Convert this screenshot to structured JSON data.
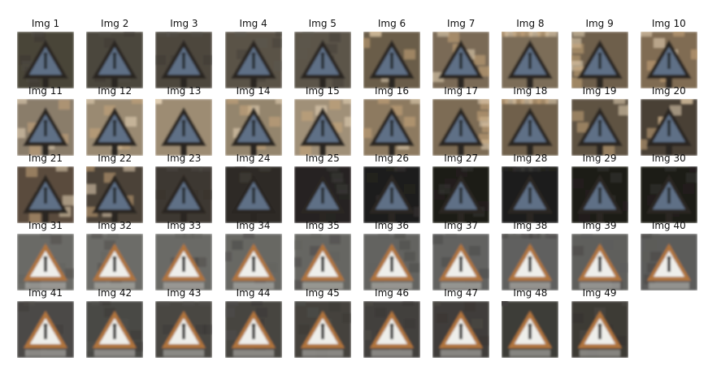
{
  "figure": {
    "images": [
      {
        "label": "Img 1",
        "style": "dark-blue-sign",
        "background": "#4a4438"
      },
      {
        "label": "Img 2",
        "style": "dark-blue-sign",
        "background": "#4b463c"
      },
      {
        "label": "Img 3",
        "style": "dark-blue-sign",
        "background": "#4d473d"
      },
      {
        "label": "Img 4",
        "style": "dark-blue-sign",
        "background": "#5a5347"
      },
      {
        "label": "Img 5",
        "style": "dark-blue-sign",
        "background": "#5b5549"
      },
      {
        "label": "Img 6",
        "style": "dark-blue-sign",
        "background": "#6b5d4a"
      },
      {
        "label": "Img 7",
        "style": "dark-blue-sign",
        "background": "#7a6b56"
      },
      {
        "label": "Img 8",
        "style": "dark-blue-sign",
        "background": "#7c6d58"
      },
      {
        "label": "Img 9",
        "style": "dark-blue-sign",
        "background": "#6e5f4b"
      },
      {
        "label": "Img 10",
        "style": "dark-blue-sign",
        "background": "#806c52"
      },
      {
        "label": "Img 11",
        "style": "dark-blue-sign",
        "background": "#8a7d6a"
      },
      {
        "label": "Img 12",
        "style": "dark-blue-sign",
        "background": "#9a8a72"
      },
      {
        "label": "Img 13",
        "style": "dark-blue-sign",
        "background": "#9d8c73"
      },
      {
        "label": "Img 14",
        "style": "dark-blue-sign",
        "background": "#94856d"
      },
      {
        "label": "Img 15",
        "style": "dark-blue-sign",
        "background": "#a09078"
      },
      {
        "label": "Img 16",
        "style": "dark-blue-sign",
        "background": "#8d7a60"
      },
      {
        "label": "Img 17",
        "style": "dark-blue-sign",
        "background": "#7d6c55"
      },
      {
        "label": "Img 18",
        "style": "dark-blue-sign",
        "background": "#6f614c"
      },
      {
        "label": "Img 19",
        "style": "dark-blue-sign",
        "background": "#5e5342"
      },
      {
        "label": "Img 20",
        "style": "dark-blue-sign",
        "background": "#4a4136"
      },
      {
        "label": "Img 21",
        "style": "dark-blue-sign",
        "background": "#5a4c3c"
      },
      {
        "label": "Img 22",
        "style": "dark-blue-sign",
        "background": "#4c4238"
      },
      {
        "label": "Img 23",
        "style": "dark-blue-sign",
        "background": "#3e3730"
      },
      {
        "label": "Img 24",
        "style": "dark-blue-sign",
        "background": "#2f2b27"
      },
      {
        "label": "Img 25",
        "style": "dark-blue-sign",
        "background": "#262421"
      },
      {
        "label": "Img 26",
        "style": "dark-blue-sign",
        "background": "#1e1c1a"
      },
      {
        "label": "Img 27",
        "style": "dark-blue-sign",
        "background": "#1c1b19"
      },
      {
        "label": "Img 28",
        "style": "dark-blue-sign",
        "background": "#1d1c1a"
      },
      {
        "label": "Img 29",
        "style": "dark-blue-sign",
        "background": "#1b1a18"
      },
      {
        "label": "Img 30",
        "style": "dark-blue-sign",
        "background": "#1c1b19"
      },
      {
        "label": "Img 31",
        "style": "white-orange-sign",
        "background": "#6a6a66"
      },
      {
        "label": "Img 32",
        "style": "white-orange-sign",
        "background": "#6c6c68"
      },
      {
        "label": "Img 33",
        "style": "white-orange-sign",
        "background": "#6a6a66"
      },
      {
        "label": "Img 34",
        "style": "white-orange-sign",
        "background": "#686864"
      },
      {
        "label": "Img 35",
        "style": "white-orange-sign",
        "background": "#666662"
      },
      {
        "label": "Img 36",
        "style": "white-orange-sign",
        "background": "#646460"
      },
      {
        "label": "Img 37",
        "style": "white-orange-sign",
        "background": "#626260"
      },
      {
        "label": "Img 38",
        "style": "white-orange-sign",
        "background": "#60605e"
      },
      {
        "label": "Img 39",
        "style": "white-orange-sign",
        "background": "#5e5e5c"
      },
      {
        "label": "Img 40",
        "style": "white-orange-sign",
        "background": "#5c5c5a"
      },
      {
        "label": "Img 41",
        "style": "white-orange-sign",
        "background": "#4c4a46"
      },
      {
        "label": "Img 42",
        "style": "white-orange-sign",
        "background": "#4a4844"
      },
      {
        "label": "Img 43",
        "style": "white-orange-sign",
        "background": "#484642"
      },
      {
        "label": "Img 44",
        "style": "white-orange-sign",
        "background": "#464440"
      },
      {
        "label": "Img 45",
        "style": "white-orange-sign",
        "background": "#44423e"
      },
      {
        "label": "Img 46",
        "style": "white-orange-sign",
        "background": "#42403c"
      },
      {
        "label": "Img 47",
        "style": "white-orange-sign",
        "background": "#403e3a"
      },
      {
        "label": "Img 48",
        "style": "white-orange-sign",
        "background": "#3e3c38"
      },
      {
        "label": "Img 49",
        "style": "white-orange-sign",
        "background": "#3c3a36"
      }
    ]
  }
}
